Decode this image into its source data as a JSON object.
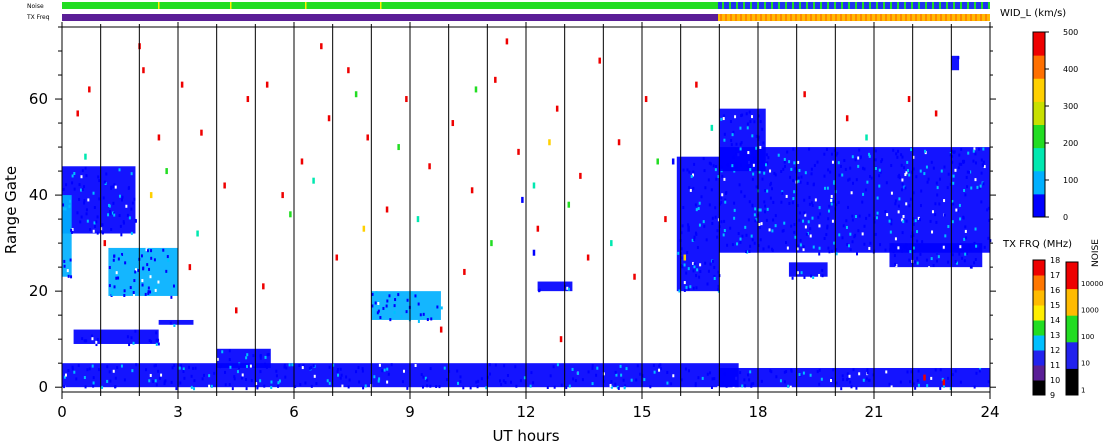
{
  "strips": {
    "noise_label": "Noise",
    "txfreq_label": "TX Freq"
  },
  "chart_data": {
    "type": "scatter",
    "title": "",
    "xlabel": "UT hours",
    "ylabel": "Range Gate",
    "xlim": [
      0,
      24
    ],
    "ylim": [
      -1,
      75
    ],
    "xticks": [
      0,
      3,
      6,
      9,
      12,
      15,
      18,
      21,
      24
    ],
    "yticks": [
      0,
      20,
      40,
      60
    ],
    "xtick_labels": [
      "0",
      "3",
      "6",
      "9",
      "12",
      "15",
      "18",
      "21",
      "24"
    ],
    "ytick_labels": [
      "0",
      "20",
      "40",
      "60"
    ],
    "hour_grid": true,
    "color_variable": "spectral width (km/s)",
    "echo_regions": [
      {
        "x0": 0.0,
        "x1": 1.9,
        "y0": 32,
        "y1": 46,
        "width": 60
      },
      {
        "x0": 0.0,
        "x1": 0.25,
        "y0": 23,
        "y1": 40,
        "width": 80
      },
      {
        "x0": 1.2,
        "x1": 3.0,
        "y0": 19,
        "y1": 29,
        "width": 80
      },
      {
        "x0": 0.3,
        "x1": 2.5,
        "y0": 9,
        "y1": 12,
        "width": 60
      },
      {
        "x0": 2.5,
        "x1": 3.4,
        "y0": 13,
        "y1": 14,
        "width": 60
      },
      {
        "x0": 4.0,
        "x1": 5.4,
        "y0": 4,
        "y1": 8,
        "width": 50
      },
      {
        "x0": 0.0,
        "x1": 17.5,
        "y0": 0,
        "y1": 5,
        "width": 30
      },
      {
        "x0": 17.0,
        "x1": 24.0,
        "y0": 0,
        "y1": 4,
        "width": 30
      },
      {
        "x0": 8.0,
        "x1": 9.8,
        "y0": 14,
        "y1": 20,
        "width": 70
      },
      {
        "x0": 12.3,
        "x1": 13.2,
        "y0": 20,
        "y1": 22,
        "width": 60
      },
      {
        "x0": 15.9,
        "x1": 17.0,
        "y0": 20,
        "y1": 48,
        "width": 50
      },
      {
        "x0": 17.0,
        "x1": 24.0,
        "y0": 28,
        "y1": 50,
        "width": 40
      },
      {
        "x0": 17.0,
        "x1": 18.2,
        "y0": 45,
        "y1": 58,
        "width": 40
      },
      {
        "x0": 18.8,
        "x1": 19.8,
        "y0": 23,
        "y1": 26,
        "width": 40
      },
      {
        "x0": 21.4,
        "x1": 23.8,
        "y0": 25,
        "y1": 30,
        "width": 40
      },
      {
        "x0": 23.0,
        "x1": 23.2,
        "y0": 66,
        "y1": 69,
        "width": 40
      }
    ],
    "scatter_points": [
      {
        "x": 0.4,
        "y": 57,
        "width": 480
      },
      {
        "x": 0.7,
        "y": 62,
        "width": 480
      },
      {
        "x": 2.1,
        "y": 66,
        "width": 480
      },
      {
        "x": 2.5,
        "y": 52,
        "width": 480
      },
      {
        "x": 3.1,
        "y": 63,
        "width": 480
      },
      {
        "x": 3.6,
        "y": 53,
        "width": 480
      },
      {
        "x": 4.2,
        "y": 42,
        "width": 480
      },
      {
        "x": 4.8,
        "y": 60,
        "width": 480
      },
      {
        "x": 5.3,
        "y": 63,
        "width": 480
      },
      {
        "x": 5.7,
        "y": 40,
        "width": 480
      },
      {
        "x": 6.2,
        "y": 47,
        "width": 480
      },
      {
        "x": 6.9,
        "y": 56,
        "width": 480
      },
      {
        "x": 7.4,
        "y": 66,
        "width": 480
      },
      {
        "x": 7.9,
        "y": 52,
        "width": 480
      },
      {
        "x": 8.4,
        "y": 37,
        "width": 480
      },
      {
        "x": 8.9,
        "y": 60,
        "width": 480
      },
      {
        "x": 9.5,
        "y": 46,
        "width": 480
      },
      {
        "x": 10.1,
        "y": 55,
        "width": 480
      },
      {
        "x": 10.6,
        "y": 41,
        "width": 480
      },
      {
        "x": 11.2,
        "y": 64,
        "width": 480
      },
      {
        "x": 11.8,
        "y": 49,
        "width": 480
      },
      {
        "x": 12.3,
        "y": 33,
        "width": 480
      },
      {
        "x": 12.8,
        "y": 58,
        "width": 480
      },
      {
        "x": 13.4,
        "y": 44,
        "width": 480
      },
      {
        "x": 13.9,
        "y": 68,
        "width": 480
      },
      {
        "x": 14.4,
        "y": 51,
        "width": 480
      },
      {
        "x": 15.1,
        "y": 60,
        "width": 480
      },
      {
        "x": 15.6,
        "y": 35,
        "width": 480
      },
      {
        "x": 19.2,
        "y": 61,
        "width": 480
      },
      {
        "x": 20.3,
        "y": 56,
        "width": 480
      },
      {
        "x": 21.9,
        "y": 60,
        "width": 480
      },
      {
        "x": 22.6,
        "y": 57,
        "width": 480
      },
      {
        "x": 1.1,
        "y": 30,
        "width": 480
      },
      {
        "x": 3.3,
        "y": 25,
        "width": 480
      },
      {
        "x": 5.2,
        "y": 21,
        "width": 480
      },
      {
        "x": 7.1,
        "y": 27,
        "width": 480
      },
      {
        "x": 10.4,
        "y": 24,
        "width": 480
      },
      {
        "x": 13.6,
        "y": 27,
        "width": 480
      },
      {
        "x": 14.8,
        "y": 23,
        "width": 480
      },
      {
        "x": 2.0,
        "y": 71,
        "width": 480
      },
      {
        "x": 6.7,
        "y": 71,
        "width": 480
      },
      {
        "x": 11.5,
        "y": 72,
        "width": 480
      },
      {
        "x": 16.4,
        "y": 63,
        "width": 480
      },
      {
        "x": 9.8,
        "y": 12,
        "width": 480
      },
      {
        "x": 4.5,
        "y": 16,
        "width": 480
      },
      {
        "x": 12.9,
        "y": 10,
        "width": 480
      },
      {
        "x": 0.6,
        "y": 48,
        "width": 180
      },
      {
        "x": 3.5,
        "y": 32,
        "width": 180
      },
      {
        "x": 6.5,
        "y": 43,
        "width": 180
      },
      {
        "x": 9.2,
        "y": 35,
        "width": 180
      },
      {
        "x": 12.2,
        "y": 42,
        "width": 180
      },
      {
        "x": 14.2,
        "y": 30,
        "width": 180
      },
      {
        "x": 16.8,
        "y": 54,
        "width": 180
      },
      {
        "x": 20.8,
        "y": 52,
        "width": 180
      },
      {
        "x": 2.7,
        "y": 45,
        "width": 230
      },
      {
        "x": 5.9,
        "y": 36,
        "width": 230
      },
      {
        "x": 8.7,
        "y": 50,
        "width": 230
      },
      {
        "x": 11.1,
        "y": 30,
        "width": 230
      },
      {
        "x": 13.1,
        "y": 38,
        "width": 230
      },
      {
        "x": 15.4,
        "y": 47,
        "width": 230
      },
      {
        "x": 7.6,
        "y": 61,
        "width": 230
      },
      {
        "x": 10.7,
        "y": 62,
        "width": 230
      },
      {
        "x": 2.3,
        "y": 40,
        "width": 320
      },
      {
        "x": 7.8,
        "y": 33,
        "width": 320
      },
      {
        "x": 12.6,
        "y": 51,
        "width": 320
      },
      {
        "x": 16.1,
        "y": 27,
        "width": 320
      },
      {
        "x": 11.9,
        "y": 39,
        "width": 0
      },
      {
        "x": 12.2,
        "y": 28,
        "width": 0
      },
      {
        "x": 16.2,
        "y": 33,
        "width": 0
      },
      {
        "x": 15.8,
        "y": 47,
        "width": 0
      },
      {
        "x": 22.3,
        "y": 2,
        "width": 480
      },
      {
        "x": 22.8,
        "y": 1,
        "width": 480
      }
    ]
  },
  "colorbars": {
    "width": {
      "title": "WID_L (km/s)",
      "min": 0,
      "max": 500,
      "ticks": [
        "0",
        "100",
        "200",
        "300",
        "400",
        "500"
      ],
      "colors": [
        "#0000ff",
        "#00b0ff",
        "#00e8b0",
        "#22dd22",
        "#c8e000",
        "#ffd000",
        "#ff7000",
        "#ee0000"
      ]
    },
    "txfreq": {
      "title": "TX FRQ (MHz)",
      "ticks": [
        "9",
        "10",
        "11",
        "12",
        "13",
        "14",
        "15",
        "16",
        "17",
        "18"
      ],
      "colors": [
        "#000000",
        "#5a1e96",
        "#2222ee",
        "#00bfff",
        "#22dd22",
        "#ffee00",
        "#ffbb00",
        "#ff7700",
        "#ee0000"
      ]
    },
    "noise": {
      "title": "NOISE",
      "ticks": [
        "1",
        "10",
        "100",
        "1000",
        "10000"
      ],
      "colors": [
        "#000000",
        "#2222ee",
        "#22dd22",
        "#ffbb00",
        "#ee0000"
      ]
    }
  }
}
